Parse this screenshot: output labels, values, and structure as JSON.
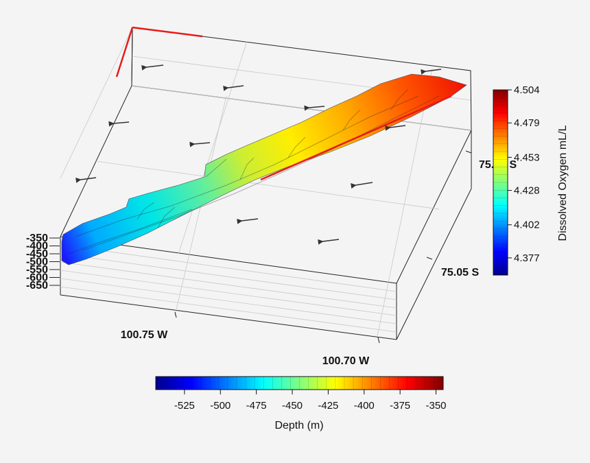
{
  "chart_data": {
    "type": "3d-surface",
    "title": "",
    "x_ticks": [
      "100.75 W",
      "100.70 W"
    ],
    "y_ticks": [
      "75.05 S",
      "75.06 S"
    ],
    "z_ticks": [
      "-350",
      "-400",
      "-450",
      "-500",
      "-550",
      "-600",
      "-650"
    ],
    "surface_colormap": "jet",
    "vector_arrows": true,
    "colorbar_oxygen": {
      "label": "Dissolved Oxygen mL/L",
      "range": [
        4.364,
        4.504
      ],
      "ticks": [
        "4.504",
        "4.479",
        "4.453",
        "4.428",
        "4.402",
        "4.377"
      ],
      "orientation": "vertical",
      "placement": "right"
    },
    "colorbar_depth": {
      "label": "Depth (m)",
      "range": [
        -545,
        -345
      ],
      "ticks": [
        "-525",
        "-500",
        "-475",
        "-450",
        "-425",
        "-400",
        "-375",
        "-350"
      ],
      "orientation": "horizontal",
      "placement": "bottom"
    }
  }
}
